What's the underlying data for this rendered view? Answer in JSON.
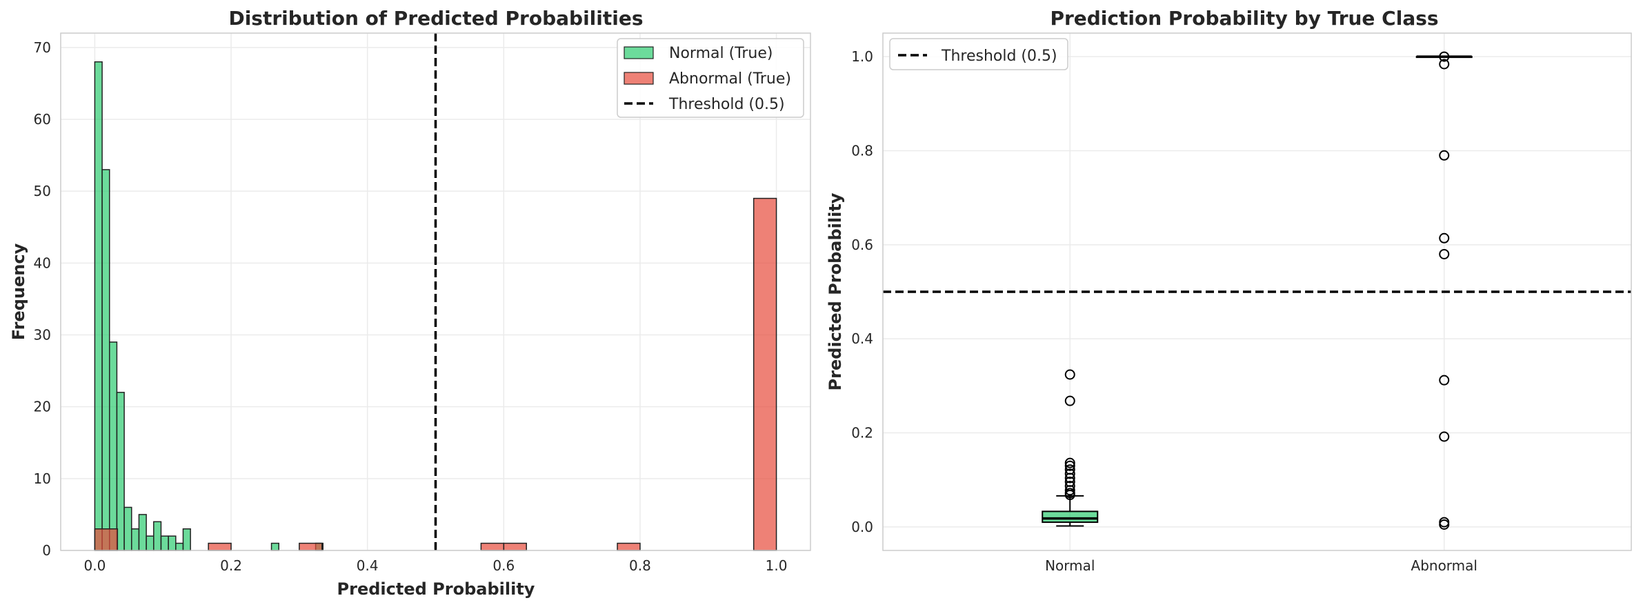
{
  "chart_data": [
    {
      "type": "histogram",
      "title": "Distribution of Predicted Probabilities",
      "xlabel": "Predicted Probability",
      "ylabel": "Frequency",
      "xlim": [
        -0.05,
        1.05
      ],
      "ylim": [
        0,
        72
      ],
      "xticks": [
        "0.0",
        "0.2",
        "0.4",
        "0.6",
        "0.8",
        "1.0"
      ],
      "xtick_values": [
        0.0,
        0.2,
        0.4,
        0.6,
        0.8,
        1.0
      ],
      "yticks": [
        "0",
        "10",
        "20",
        "30",
        "40",
        "50",
        "60",
        "70"
      ],
      "ytick_values": [
        0,
        10,
        20,
        30,
        40,
        50,
        60,
        70
      ],
      "grid": true,
      "legend_position": "top-right",
      "threshold": 0.5,
      "series": [
        {
          "name": "Normal (True)",
          "color": "#2ecc71",
          "bin_width": 0.0108,
          "bins": [
            {
              "x": 0.0,
              "y": 68
            },
            {
              "x": 0.0108,
              "y": 53
            },
            {
              "x": 0.0216,
              "y": 29
            },
            {
              "x": 0.0324,
              "y": 22
            },
            {
              "x": 0.0432,
              "y": 6
            },
            {
              "x": 0.054,
              "y": 3
            },
            {
              "x": 0.0648,
              "y": 5
            },
            {
              "x": 0.0756,
              "y": 2
            },
            {
              "x": 0.0864,
              "y": 4
            },
            {
              "x": 0.0972,
              "y": 2
            },
            {
              "x": 0.108,
              "y": 2
            },
            {
              "x": 0.1188,
              "y": 1
            },
            {
              "x": 0.1296,
              "y": 3
            },
            {
              "x": 0.2592,
              "y": 1
            },
            {
              "x": 0.324,
              "y": 1
            }
          ]
        },
        {
          "name": "Abnormal (True)",
          "color": "#e74c3c",
          "bin_width": 0.0333,
          "bins": [
            {
              "x": 0.0,
              "y": 3
            },
            {
              "x": 0.1667,
              "y": 1
            },
            {
              "x": 0.3,
              "y": 1
            },
            {
              "x": 0.5667,
              "y": 1
            },
            {
              "x": 0.6,
              "y": 1
            },
            {
              "x": 0.7667,
              "y": 1
            },
            {
              "x": 0.9667,
              "y": 49
            }
          ]
        }
      ],
      "legend": [
        "Normal (True)",
        "Abnormal (True)",
        "Threshold (0.5)"
      ]
    },
    {
      "type": "box",
      "title": "Prediction Probability by True Class",
      "xlabel": "",
      "ylabel": "Predicted Probability",
      "ylim": [
        -0.05,
        1.05
      ],
      "categories": [
        "Normal",
        "Abnormal"
      ],
      "yticks": [
        "0.0",
        "0.2",
        "0.4",
        "0.6",
        "0.8",
        "1.0"
      ],
      "ytick_values": [
        0.0,
        0.2,
        0.4,
        0.6,
        0.8,
        1.0
      ],
      "grid": true,
      "legend_position": "top-left",
      "threshold": 0.5,
      "legend": [
        "Threshold (0.5)"
      ],
      "boxes": [
        {
          "name": "Normal",
          "color": "#2ecc71",
          "whisker_low": 0.002,
          "q1": 0.01,
          "median": 0.018,
          "q3": 0.033,
          "whisker_high": 0.066,
          "outliers": [
            0.324,
            0.268,
            0.136,
            0.13,
            0.122,
            0.113,
            0.104,
            0.096,
            0.087,
            0.078,
            0.072,
            0.068
          ]
        },
        {
          "name": "Abnormal",
          "color": "#e74c3c",
          "whisker_low": 1.0,
          "q1": 1.0,
          "median": 1.0,
          "q3": 1.0,
          "whisker_high": 1.0,
          "outliers": [
            1.0,
            0.984,
            0.79,
            0.614,
            0.58,
            0.312,
            0.192,
            0.01,
            0.005
          ]
        }
      ]
    }
  ]
}
